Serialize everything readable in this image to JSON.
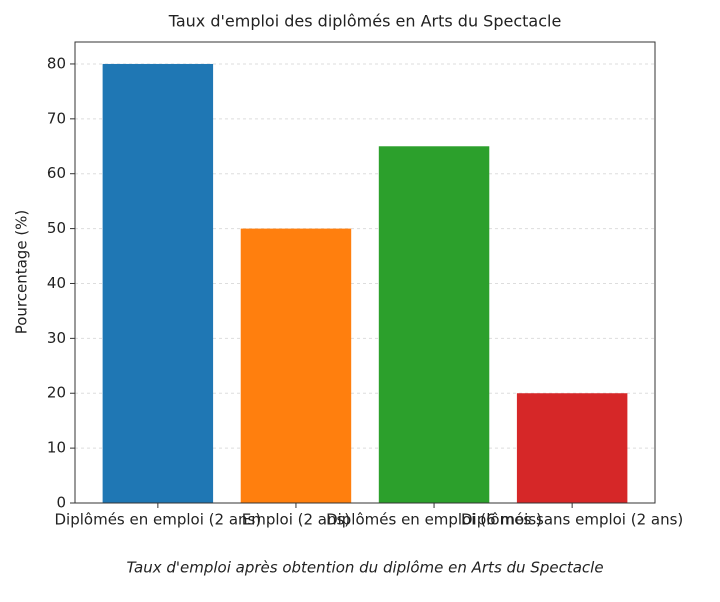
{
  "chart_data": {
    "type": "bar",
    "title": "Taux d'emploi des diplômés en Arts du Spectacle",
    "xlabel": "Taux d'emploi après obtention du diplôme en Arts du Spectacle",
    "ylabel": "Pourcentage (%)",
    "categories": [
      "Diplômés en emploi (2 ans)",
      "Emploi (2 ans)",
      "Diplômés en emploi (6 mois)",
      "Diplômés sans emploi (2 ans)"
    ],
    "values": [
      80,
      50,
      65,
      20
    ],
    "colors": [
      "#1f77b4",
      "#ff7f0e",
      "#2ca02c",
      "#d62728"
    ],
    "ylim": [
      0,
      84
    ],
    "yticks": [
      0,
      10,
      20,
      30,
      40,
      50,
      60,
      70,
      80
    ],
    "grid": true
  }
}
